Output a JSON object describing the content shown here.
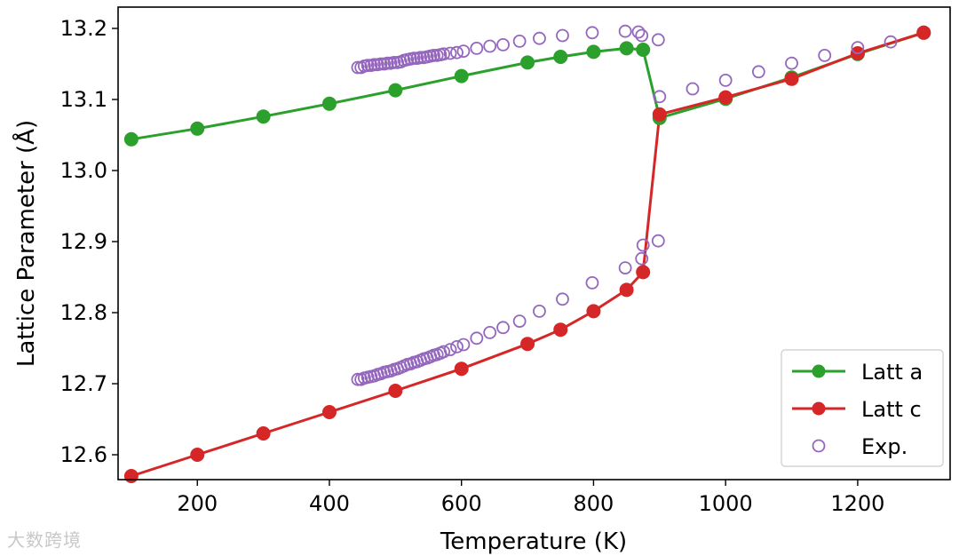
{
  "chart_data": {
    "type": "line",
    "xlabel": "Temperature (K)",
    "ylabel": "Lattice Parameter (Å)",
    "xlim": [
      80,
      1340
    ],
    "ylim": [
      12.565,
      13.23
    ],
    "x_ticks": [
      200,
      400,
      600,
      800,
      1000,
      1200
    ],
    "y_ticks": [
      12.6,
      12.7,
      12.8,
      12.9,
      13.0,
      13.1,
      13.2
    ],
    "grid": false,
    "legend_position": "bottom-right",
    "series": [
      {
        "name": "Latt a",
        "color": "#2ca02c",
        "marker": "filled-circle",
        "points": [
          [
            100,
            13.044
          ],
          [
            200,
            13.059
          ],
          [
            300,
            13.076
          ],
          [
            400,
            13.094
          ],
          [
            500,
            13.113
          ],
          [
            600,
            13.133
          ],
          [
            700,
            13.152
          ],
          [
            750,
            13.16
          ],
          [
            800,
            13.167
          ],
          [
            850,
            13.172
          ],
          [
            875,
            13.17
          ],
          [
            900,
            13.074
          ],
          [
            1000,
            13.101
          ],
          [
            1100,
            13.131
          ],
          [
            1200,
            13.164
          ],
          [
            1300,
            13.194
          ]
        ]
      },
      {
        "name": "Latt c",
        "color": "#d62728",
        "marker": "filled-circle",
        "points": [
          [
            100,
            12.57
          ],
          [
            200,
            12.6
          ],
          [
            300,
            12.63
          ],
          [
            400,
            12.66
          ],
          [
            500,
            12.69
          ],
          [
            600,
            12.721
          ],
          [
            700,
            12.756
          ],
          [
            750,
            12.776
          ],
          [
            800,
            12.802
          ],
          [
            850,
            12.832
          ],
          [
            875,
            12.857
          ],
          [
            900,
            13.079
          ],
          [
            1000,
            13.103
          ],
          [
            1100,
            13.129
          ],
          [
            1200,
            13.165
          ],
          [
            1300,
            13.194
          ]
        ]
      },
      {
        "name": "Exp.",
        "color": "#9467bd",
        "marker": "open-circle",
        "points": [
          [
            443,
            13.145
          ],
          [
            448,
            13.145
          ],
          [
            453,
            13.147
          ],
          [
            458,
            13.148
          ],
          [
            463,
            13.148
          ],
          [
            468,
            13.149
          ],
          [
            473,
            13.149
          ],
          [
            478,
            13.15
          ],
          [
            483,
            13.15
          ],
          [
            488,
            13.151
          ],
          [
            493,
            13.151
          ],
          [
            498,
            13.152
          ],
          [
            503,
            13.152
          ],
          [
            508,
            13.153
          ],
          [
            513,
            13.155
          ],
          [
            518,
            13.156
          ],
          [
            523,
            13.157
          ],
          [
            528,
            13.158
          ],
          [
            533,
            13.158
          ],
          [
            538,
            13.159
          ],
          [
            543,
            13.159
          ],
          [
            548,
            13.16
          ],
          [
            553,
            13.161
          ],
          [
            558,
            13.162
          ],
          [
            563,
            13.162
          ],
          [
            568,
            13.163
          ],
          [
            573,
            13.164
          ],
          [
            583,
            13.165
          ],
          [
            593,
            13.166
          ],
          [
            603,
            13.168
          ],
          [
            623,
            13.172
          ],
          [
            643,
            13.175
          ],
          [
            663,
            13.177
          ],
          [
            688,
            13.182
          ],
          [
            718,
            13.186
          ],
          [
            753,
            13.19
          ],
          [
            798,
            13.194
          ],
          [
            848,
            13.196
          ],
          [
            868,
            13.195
          ],
          [
            873,
            13.19
          ],
          [
            898,
            13.184
          ],
          [
            900,
            13.104
          ],
          [
            950,
            13.115
          ],
          [
            1000,
            13.127
          ],
          [
            1050,
            13.139
          ],
          [
            1100,
            13.151
          ],
          [
            1150,
            13.162
          ],
          [
            1200,
            13.173
          ],
          [
            1250,
            13.181
          ],
          [
            443,
            12.706
          ],
          [
            448,
            12.706
          ],
          [
            453,
            12.708
          ],
          [
            458,
            12.709
          ],
          [
            463,
            12.71
          ],
          [
            468,
            12.711
          ],
          [
            473,
            12.713
          ],
          [
            478,
            12.714
          ],
          [
            483,
            12.716
          ],
          [
            488,
            12.717
          ],
          [
            493,
            12.718
          ],
          [
            498,
            12.72
          ],
          [
            503,
            12.721
          ],
          [
            508,
            12.723
          ],
          [
            513,
            12.725
          ],
          [
            518,
            12.727
          ],
          [
            523,
            12.728
          ],
          [
            528,
            12.73
          ],
          [
            533,
            12.731
          ],
          [
            538,
            12.733
          ],
          [
            543,
            12.735
          ],
          [
            548,
            12.736
          ],
          [
            553,
            12.738
          ],
          [
            558,
            12.74
          ],
          [
            563,
            12.741
          ],
          [
            568,
            12.743
          ],
          [
            573,
            12.745
          ],
          [
            583,
            12.748
          ],
          [
            593,
            12.752
          ],
          [
            603,
            12.755
          ],
          [
            623,
            12.764
          ],
          [
            643,
            12.772
          ],
          [
            663,
            12.779
          ],
          [
            688,
            12.788
          ],
          [
            718,
            12.802
          ],
          [
            753,
            12.819
          ],
          [
            798,
            12.842
          ],
          [
            848,
            12.863
          ],
          [
            873,
            12.876
          ],
          [
            875,
            12.895
          ],
          [
            898,
            12.901
          ]
        ]
      }
    ]
  },
  "watermark_text": "大数跨境"
}
